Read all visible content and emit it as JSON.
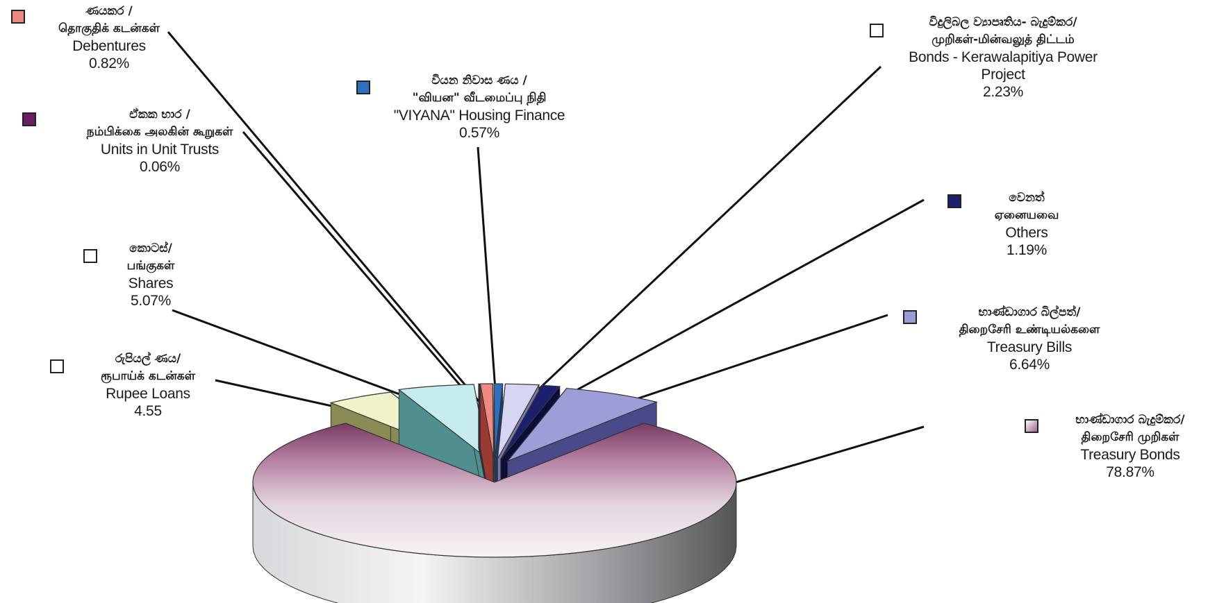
{
  "chart_data": {
    "type": "pie",
    "style": "3d-exploded",
    "slices": [
      {
        "key": "treasury_bonds",
        "si": "භාණ්ඩාගාර බැදුම්කර/",
        "ta": "திறைசேரி முறிகள்",
        "en": "Treasury Bonds",
        "value_label": "78.87%",
        "value": 78.87,
        "color": "#b5a0b0",
        "top_color": "#e9dbe4",
        "dark_color": "#7a4a68",
        "side_color": "#b8b8b8",
        "swatch": "#d9c8e0"
      },
      {
        "key": "rupee_loans",
        "si": "රුපියල් ණය/",
        "ta": "ரூபாய்க் கடன்கள்",
        "en": "Rupee Loans",
        "value_label": "4.55",
        "value": 4.55,
        "color": "#eeeec0",
        "top_color": "#f2f2c8",
        "dark_color": "#8a8a55",
        "side_color": "#6f7a4a",
        "swatch": "#ffffff"
      },
      {
        "key": "shares",
        "si": "කොටස්/",
        "ta": "பங்குகள்",
        "en": "Shares",
        "value_label": "5.07%",
        "value": 5.07,
        "color": "#bfe8ec",
        "top_color": "#c6ecf0",
        "dark_color": "#4f8f90",
        "side_color": "#3f7f80",
        "swatch": "#ffffff"
      },
      {
        "key": "unit_trusts",
        "si": "ඒකක භාර /",
        "ta": "நம்பிக்கை அலகின் கூறுகள்",
        "en": "Units in Unit Trusts",
        "value_label": "0.06%",
        "value": 0.06,
        "color": "#6a1e66",
        "top_color": "#6a1e66",
        "dark_color": "#3c0d3a",
        "side_color": "#3c0d3a",
        "swatch": "#6a1e66"
      },
      {
        "key": "debentures",
        "si": "ණයකර /",
        "ta": "தொகுதிக் கடன்கள்",
        "en": "Debentures",
        "value_label": "0.82%",
        "value": 0.82,
        "color": "#f08a80",
        "top_color": "#f08a80",
        "dark_color": "#9a3a33",
        "side_color": "#9a3a33",
        "swatch": "#f08a80"
      },
      {
        "key": "viyana",
        "si": "වියන නිවාස ණය /",
        "ta": "\"வியன\" வீடமைப்பு நிதி",
        "en": "\"VIYANA\" Housing Finance",
        "value_label": "0.57%",
        "value": 0.57,
        "color": "#2f6fc0",
        "top_color": "#2f6fc0",
        "dark_color": "#153d75",
        "side_color": "#153d75",
        "swatch": "#2f6fc0"
      },
      {
        "key": "kerawalapitiya",
        "si": "විදුලිබල ව්‍යාපෘතිය- බැදුම්කර/",
        "ta": "முறிகள்-மின்வலுத் திட்டம்",
        "en1": "Bonds - Kerawalapitiya Power",
        "en2": "Project",
        "value_label": "2.23%",
        "value": 2.23,
        "color": "#d4d4f0",
        "top_color": "#d6d6f2",
        "dark_color": "#7a7aa8",
        "side_color": "#7a7aa8",
        "swatch": "#ffffff"
      },
      {
        "key": "others",
        "si": "වෙනත්",
        "ta": "ஏனையவை",
        "en": "Others",
        "value_label": "1.19%",
        "value": 1.19,
        "color": "#1c1f6e",
        "top_color": "#1c1f6e",
        "dark_color": "#0c0e3a",
        "side_color": "#0c0e3a",
        "swatch": "#1c1f6e"
      },
      {
        "key": "treasury_bills",
        "si": "භාණ්ඩාගාර බිල්පත්/",
        "ta": "திறைசேரி உண்டியல்களை",
        "en": "Treasury Bills",
        "value_label": "6.64%",
        "value": 6.64,
        "color": "#9a9ad6",
        "top_color": "#9d9dd8",
        "dark_color": "#4a4a8a",
        "side_color": "#3c3c78",
        "swatch": "#9a9ad6"
      }
    ]
  }
}
